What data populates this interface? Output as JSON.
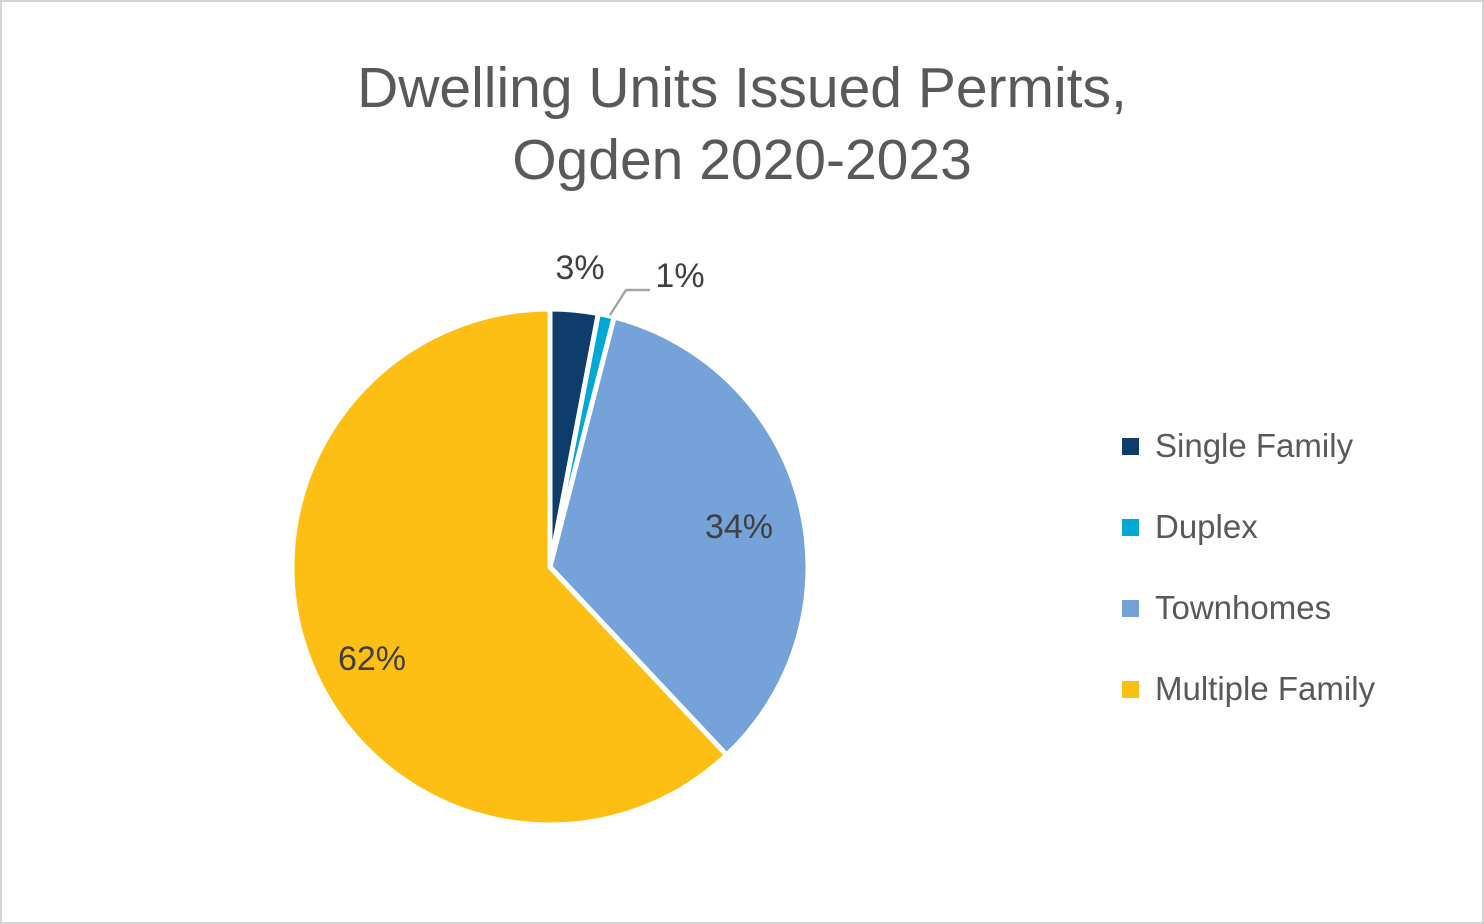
{
  "title": {
    "line1": "Dwelling Units Issued Permits,",
    "line2": "Ogden 2020-2023"
  },
  "chart_data": {
    "type": "pie",
    "title": "Dwelling Units Issued Permits, Ogden 2020-2023",
    "direction": "clockwise",
    "start_angle_deg": 0,
    "legend_position": "right",
    "total_pct": 100,
    "slices": [
      {
        "label": "Single Family",
        "value_pct": 3,
        "data_label": "3%",
        "color": "#0E3D6B",
        "label_placement": "outside"
      },
      {
        "label": "Duplex",
        "value_pct": 1,
        "data_label": "1%",
        "color": "#00A9D4",
        "label_placement": "outside_with_leader"
      },
      {
        "label": "Townhomes",
        "value_pct": 34,
        "data_label": "34%",
        "color": "#74A2D9",
        "label_placement": "inside"
      },
      {
        "label": "Multiple Family",
        "value_pct": 62,
        "data_label": "62%",
        "color": "#FDBF13",
        "label_placement": "inside"
      }
    ]
  },
  "colors": {
    "title_text": "#595959",
    "legend_text": "#595959",
    "data_label_text": "#404040",
    "leader_line": "#A6A6A6",
    "slice_gap": "#FFFFFF",
    "frame_border": "#D3D3D3",
    "background": "#FFFFFF"
  }
}
